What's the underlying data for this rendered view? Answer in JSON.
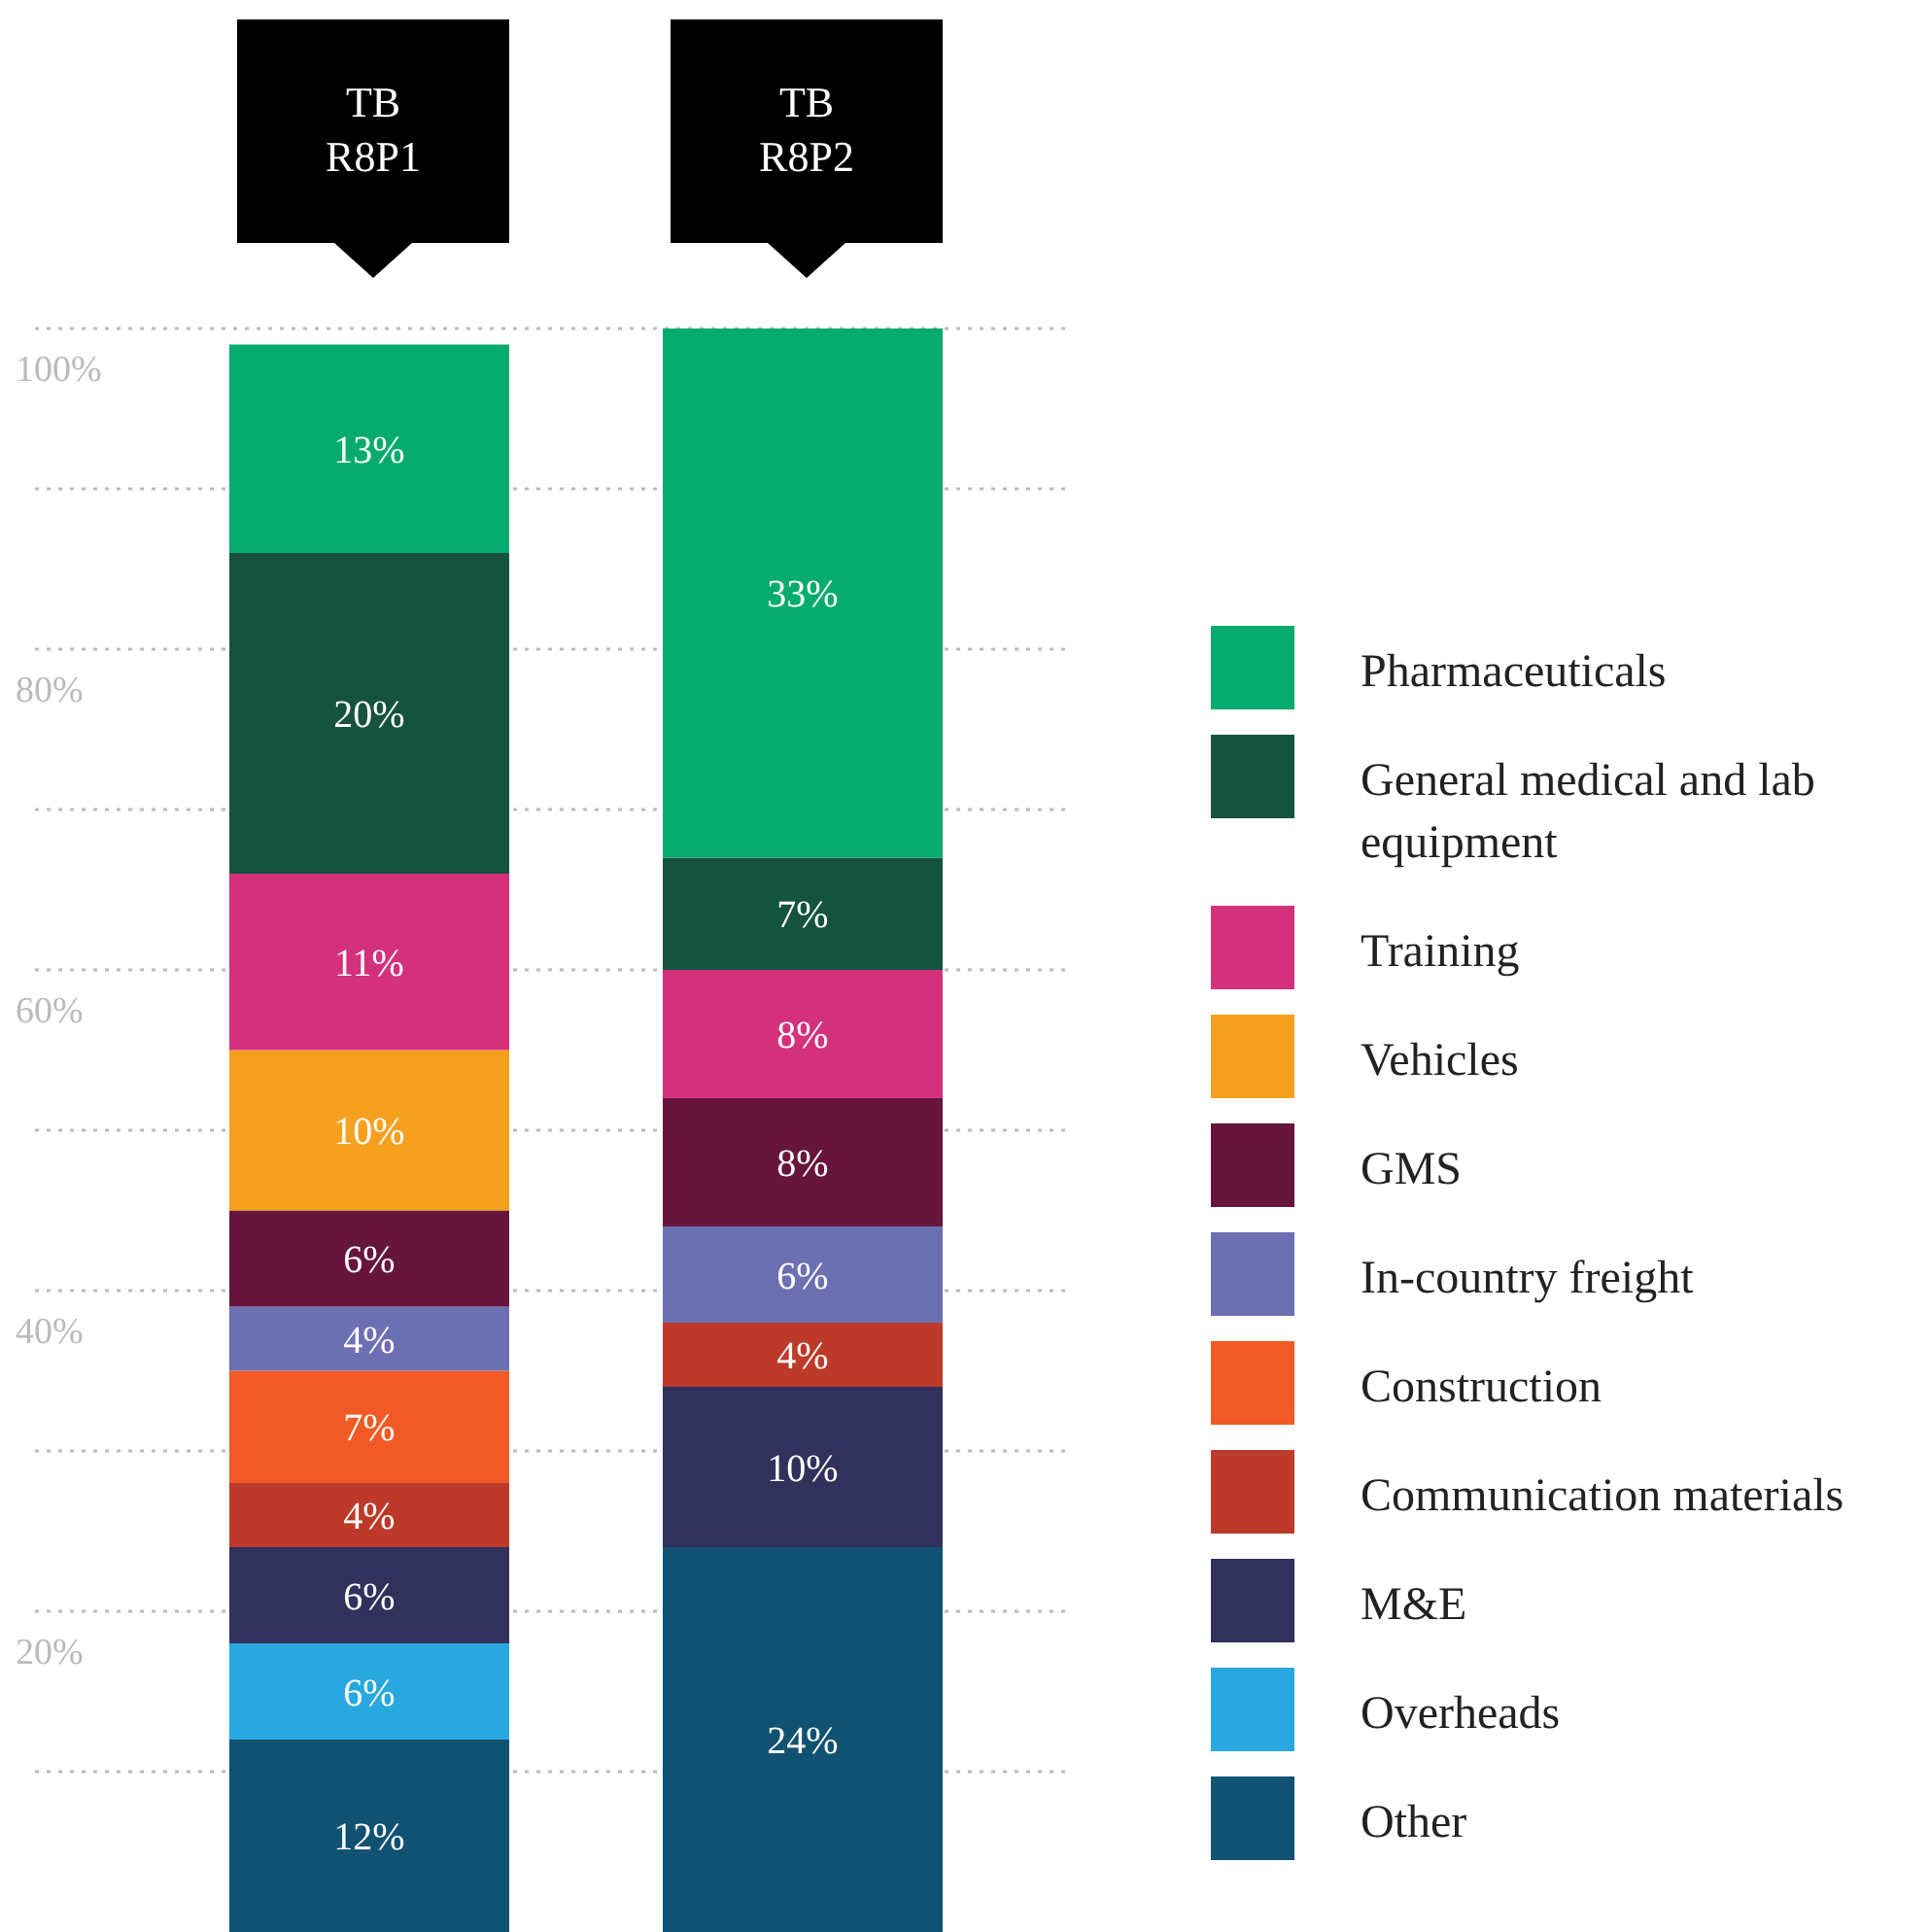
{
  "chart_data": {
    "type": "bar",
    "stacked": true,
    "categories": [
      "TB\nR8P1",
      "TB\nR8P2"
    ],
    "ylim": [
      0,
      100
    ],
    "yticks": [
      {
        "value": 10,
        "label": null
      },
      {
        "value": 20,
        "label": "20%"
      },
      {
        "value": 30,
        "label": null
      },
      {
        "value": 40,
        "label": "40%"
      },
      {
        "value": 50,
        "label": null
      },
      {
        "value": 60,
        "label": "60%"
      },
      {
        "value": 70,
        "label": null
      },
      {
        "value": 80,
        "label": "80%"
      },
      {
        "value": 90,
        "label": null
      },
      {
        "value": 100,
        "label": "100%"
      }
    ],
    "grid": "y",
    "legend": "right",
    "series": [
      {
        "name": "Other",
        "color": "#115272",
        "values": [
          12,
          24
        ],
        "value_labels": [
          "12%",
          "24%"
        ]
      },
      {
        "name": "Overheads",
        "color": "#29a8e0",
        "values": [
          6,
          null
        ],
        "value_labels": [
          "6%",
          null
        ]
      },
      {
        "name": "M&E",
        "color": "#31315b",
        "values": [
          6,
          10
        ],
        "value_labels": [
          "6%",
          "10%"
        ]
      },
      {
        "name": "Communication materials",
        "color": "#bd3a2a",
        "values": [
          4,
          4
        ],
        "value_labels": [
          "4%",
          "4%"
        ]
      },
      {
        "name": "Construction",
        "color": "#f15a24",
        "values": [
          7,
          null
        ],
        "value_labels": [
          "7%",
          null
        ]
      },
      {
        "name": "In-country freight",
        "color": "#6d6fb3",
        "values": [
          4,
          6
        ],
        "value_labels": [
          "4%",
          "6%"
        ]
      },
      {
        "name": "GMS",
        "color": "#66153c",
        "values": [
          6,
          8
        ],
        "value_labels": [
          "6%",
          "8%"
        ]
      },
      {
        "name": "Vehicles",
        "color": "#f6a01f",
        "values": [
          10,
          null
        ],
        "value_labels": [
          "10%",
          null
        ]
      },
      {
        "name": "Training",
        "color": "#d4317c",
        "values": [
          11,
          8
        ],
        "value_labels": [
          "11%",
          "8%"
        ]
      },
      {
        "name": "General medical and lab equipment",
        "color": "#15533f",
        "values": [
          20,
          7
        ],
        "value_labels": [
          "20%",
          "7%"
        ]
      },
      {
        "name": "Pharmaceuticals",
        "color": "#07ab6f",
        "values": [
          13,
          33
        ],
        "value_labels": [
          "13%",
          "33%"
        ]
      }
    ]
  }
}
